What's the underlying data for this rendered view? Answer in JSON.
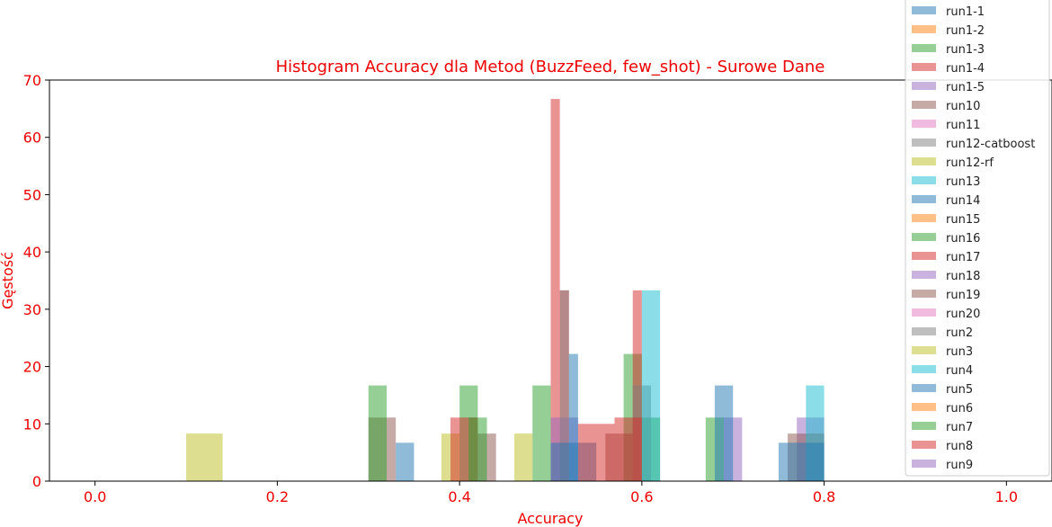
{
  "chart_data": {
    "type": "bar",
    "title": "Histogram Accuracy dla Metod (BuzzFeed, few_shot) - Surowe Dane",
    "xlabel": "Accuracy",
    "ylabel": "Gęstość",
    "xlim": [
      -0.05,
      1.05
    ],
    "ylim": [
      0,
      70
    ],
    "xticks": [
      "0.0",
      "0.2",
      "0.4",
      "0.6",
      "0.8",
      "1.0"
    ],
    "yticks": [
      "0",
      "10",
      "20",
      "30",
      "40",
      "50",
      "60",
      "70"
    ],
    "grid": false,
    "legend_position": "top-right",
    "series": [
      {
        "name": "run1-1",
        "color": "#1f77b4",
        "bars": []
      },
      {
        "name": "run1-2",
        "color": "#ff7f0e",
        "bars": []
      },
      {
        "name": "run1-3",
        "color": "#2ca02c",
        "bars": [
          [
            0.58,
            0.6,
            22.2
          ],
          [
            0.6,
            0.62,
            11.1
          ],
          [
            0.67,
            0.69,
            11.1
          ]
        ]
      },
      {
        "name": "run1-4",
        "color": "#d62728",
        "bars": [
          [
            0.5,
            0.51,
            66.7
          ],
          [
            0.51,
            0.52,
            33.3
          ],
          [
            0.59,
            0.6,
            33.3
          ]
        ]
      },
      {
        "name": "run1-5",
        "color": "#9467bd",
        "bars": [
          [
            0.5,
            0.53,
            11.1
          ],
          [
            0.69,
            0.71,
            11.1
          ],
          [
            0.77,
            0.8,
            11.1
          ]
        ]
      },
      {
        "name": "run10",
        "color": "#8c564b",
        "bars": [
          [
            0.3,
            0.33,
            11.1
          ],
          [
            0.42,
            0.44,
            8.3
          ],
          [
            0.56,
            0.59,
            8.3
          ],
          [
            0.76,
            0.8,
            8.3
          ]
        ]
      },
      {
        "name": "run11",
        "color": "#e377c2",
        "bars": []
      },
      {
        "name": "run12-catboost",
        "color": "#7f7f7f",
        "bars": [
          [
            0.51,
            0.52,
            33.3
          ],
          [
            0.59,
            0.61,
            16.7
          ]
        ]
      },
      {
        "name": "run12-rf",
        "color": "#bcbd22",
        "bars": [
          [
            0.1,
            0.14,
            8.3
          ],
          [
            0.38,
            0.4,
            8.3
          ],
          [
            0.46,
            0.48,
            8.3
          ]
        ]
      },
      {
        "name": "run13",
        "color": "#17becf",
        "bars": [
          [
            0.6,
            0.62,
            33.3
          ],
          [
            0.78,
            0.8,
            16.7
          ]
        ]
      },
      {
        "name": "run14",
        "color": "#1f77b4",
        "bars": [
          [
            0.33,
            0.35,
            6.7
          ],
          [
            0.5,
            0.55,
            6.7
          ],
          [
            0.68,
            0.7,
            16.7
          ],
          [
            0.75,
            0.8,
            6.7
          ]
        ]
      },
      {
        "name": "run15",
        "color": "#ff7f0e",
        "bars": []
      },
      {
        "name": "run16",
        "color": "#2ca02c",
        "bars": [
          [
            0.3,
            0.32,
            16.7
          ],
          [
            0.4,
            0.42,
            16.7
          ],
          [
            0.48,
            0.5,
            16.7
          ]
        ]
      },
      {
        "name": "run17",
        "color": "#d62728",
        "bars": [
          [
            0.39,
            0.42,
            11.1
          ],
          [
            0.53,
            0.57,
            10.0
          ]
        ]
      },
      {
        "name": "run18",
        "color": "#9467bd",
        "bars": []
      },
      {
        "name": "run19",
        "color": "#8c564b",
        "bars": []
      },
      {
        "name": "run20",
        "color": "#e377c2",
        "bars": []
      },
      {
        "name": "run2",
        "color": "#7f7f7f",
        "bars": []
      },
      {
        "name": "run3",
        "color": "#bcbd22",
        "bars": []
      },
      {
        "name": "run4",
        "color": "#17becf",
        "bars": []
      },
      {
        "name": "run5",
        "color": "#1f77b4",
        "bars": [
          [
            0.52,
            0.53,
            22.2
          ]
        ]
      },
      {
        "name": "run6",
        "color": "#ff7f0e",
        "bars": []
      },
      {
        "name": "run7",
        "color": "#2ca02c",
        "bars": [
          [
            0.41,
            0.43,
            11.1
          ]
        ]
      },
      {
        "name": "run8",
        "color": "#d62728",
        "bars": [
          [
            0.57,
            0.6,
            11.1
          ]
        ]
      },
      {
        "name": "run9",
        "color": "#9467bd",
        "bars": []
      }
    ]
  }
}
